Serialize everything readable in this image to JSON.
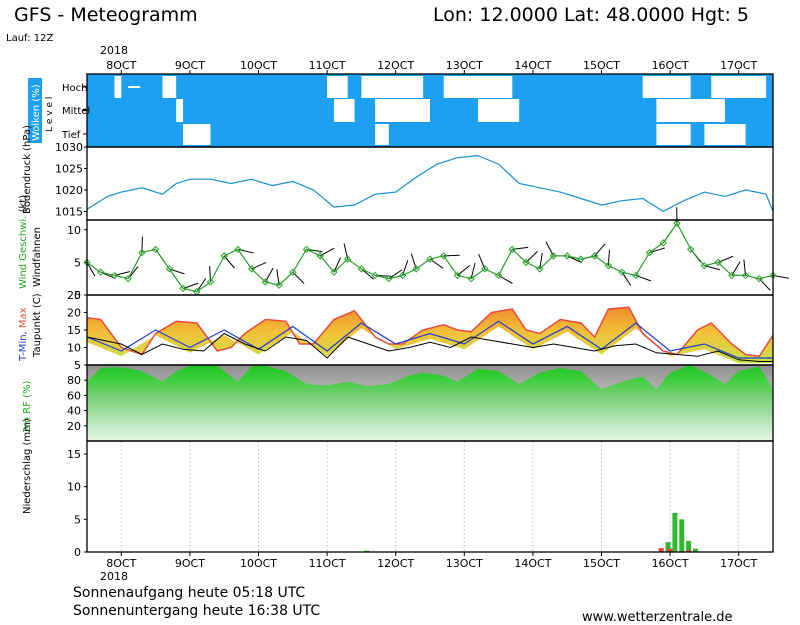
{
  "header": {
    "title": "GFS - Meteogramm",
    "location": "Lon: 12.0000  Lat: 48.0000  Hgt: 5",
    "run": "Lauf: 12Z"
  },
  "footer": {
    "sunrise": "Sonnenaufgang heute 05:18 UTC",
    "sunset": "Sonnenuntergang heute 16:38 UTC",
    "credit": "www.wetterzentrale.de"
  },
  "chart_data": [
    {
      "type": "area",
      "id": "clouds",
      "ylabel": "Wolken (%)",
      "level_axis_label": "L e v e l",
      "levels": [
        "Hoch",
        "Mittel",
        "Tief"
      ],
      "xlabel_top": "2018",
      "x_ticks": [
        "8OCT",
        "9OCT",
        "10OCT",
        "11OCT",
        "12OCT",
        "13OCT",
        "14OCT",
        "15OCT",
        "16OCT",
        "17OCT"
      ],
      "note": "cloud cover; clear gaps per level as [start_day, end_day]",
      "clear_gaps": {
        "Hoch": [
          [
            7.9,
            8.0
          ],
          [
            8.6,
            8.8
          ],
          [
            11.0,
            11.3
          ],
          [
            11.5,
            12.4
          ],
          [
            12.7,
            13.7
          ],
          [
            15.6,
            16.3
          ],
          [
            16.6,
            17.4
          ]
        ],
        "Mittel": [
          [
            8.8,
            8.9
          ],
          [
            11.1,
            11.4
          ],
          [
            11.7,
            12.5
          ],
          [
            13.2,
            13.8
          ],
          [
            15.8,
            16.8
          ]
        ],
        "Tief": [
          [
            8.9,
            9.3
          ],
          [
            11.7,
            11.9
          ],
          [
            15.8,
            16.3
          ],
          [
            16.5,
            17.1
          ]
        ]
      }
    },
    {
      "type": "line",
      "id": "pressure",
      "ylabel": "Bodendruck (hPa)",
      "ylim": [
        1013,
        1030
      ],
      "y_ticks": [
        1015,
        1020,
        1025,
        1030
      ],
      "series": [
        {
          "color": "#1a8fd0",
          "x": [
            7.5,
            7.8,
            8.0,
            8.3,
            8.6,
            8.8,
            9.0,
            9.3,
            9.6,
            9.9,
            10.2,
            10.5,
            10.8,
            11.1,
            11.4,
            11.7,
            12.0,
            12.3,
            12.6,
            12.9,
            13.2,
            13.5,
            13.8,
            14.1,
            14.4,
            14.7,
            15.0,
            15.3,
            15.6,
            15.9,
            16.2,
            16.5,
            16.8,
            17.1,
            17.4,
            17.5
          ],
          "y": [
            1015.5,
            1018.5,
            1019.5,
            1020.5,
            1019,
            1021.5,
            1022.5,
            1022.5,
            1021.5,
            1022.5,
            1021,
            1022,
            1020,
            1016,
            1016.5,
            1019,
            1019.5,
            1023,
            1026,
            1027.5,
            1028,
            1026,
            1021.5,
            1020.5,
            1019.5,
            1018,
            1016.5,
            1017.5,
            1018,
            1015,
            1017.5,
            1019.5,
            1018.5,
            1020,
            1019,
            1015
          ]
        }
      ]
    },
    {
      "type": "line",
      "id": "wind",
      "ylabel": "Wind Geschwi. (kt)",
      "ylabel2": "Windfahnen",
      "ylim": [
        0,
        11.5
      ],
      "y_ticks": [
        0,
        5,
        10
      ],
      "series": [
        {
          "color": "#2ca02c",
          "x": [
            7.5,
            7.7,
            7.9,
            8.1,
            8.3,
            8.5,
            8.7,
            8.9,
            9.1,
            9.3,
            9.5,
            9.7,
            9.9,
            10.1,
            10.3,
            10.5,
            10.7,
            10.9,
            11.1,
            11.3,
            11.5,
            11.7,
            11.9,
            12.1,
            12.3,
            12.5,
            12.7,
            12.9,
            13.1,
            13.3,
            13.5,
            13.7,
            13.9,
            14.1,
            14.3,
            14.5,
            14.7,
            14.9,
            15.1,
            15.3,
            15.5,
            15.7,
            15.9,
            16.1,
            16.3,
            16.5,
            16.7,
            16.9,
            17.1,
            17.3,
            17.5
          ],
          "y": [
            5,
            3.5,
            3,
            2.5,
            6.5,
            7,
            4,
            1,
            0.5,
            2,
            6,
            7,
            4,
            2,
            1.5,
            3.5,
            7,
            6,
            3.5,
            5.5,
            4,
            3,
            2.5,
            3,
            4,
            5.5,
            6,
            3,
            2.5,
            4,
            3,
            7,
            5,
            4,
            6,
            6,
            5.5,
            6,
            4.5,
            3.5,
            3,
            6.5,
            8,
            11,
            7,
            4.5,
            5,
            3,
            3,
            2.5,
            3
          ]
        }
      ]
    },
    {
      "type": "area",
      "id": "temperature",
      "ylabel": "T-Min, Max Taupunkt (C)",
      "ylim": [
        5,
        25
      ],
      "y_ticks": [
        5,
        10,
        15,
        20,
        25
      ],
      "series": [
        {
          "name": "Max",
          "color": "#e74c3c",
          "x": [
            7.5,
            7.7,
            8.0,
            8.3,
            8.5,
            8.8,
            9.1,
            9.4,
            9.6,
            9.8,
            10.1,
            10.4,
            10.6,
            10.8,
            11.1,
            11.4,
            11.7,
            11.9,
            12.1,
            12.4,
            12.7,
            12.9,
            13.1,
            13.4,
            13.7,
            13.9,
            14.1,
            14.4,
            14.7,
            14.9,
            15.1,
            15.4,
            15.6,
            15.9,
            16.1,
            16.4,
            16.6,
            16.9,
            17.1,
            17.3,
            17.5
          ],
          "y": [
            18.5,
            18,
            10,
            8,
            14,
            17.5,
            17,
            9,
            10,
            14,
            18,
            17.5,
            11,
            11,
            18,
            20.5,
            13,
            11,
            11,
            15,
            16.5,
            15,
            14.5,
            20,
            21,
            15,
            14,
            18,
            17,
            13,
            21,
            21.5,
            14,
            9,
            8,
            15,
            17,
            11,
            8,
            7.5,
            13.5
          ]
        },
        {
          "name": "Min",
          "color": "#1f3bd1",
          "x": [
            7.5,
            8.0,
            8.5,
            9.0,
            9.5,
            10.0,
            10.5,
            11.0,
            11.5,
            12.0,
            12.5,
            13.0,
            13.5,
            14.0,
            14.5,
            15.0,
            15.5,
            16.0,
            16.5,
            17.0,
            17.5
          ],
          "y": [
            13,
            9,
            15,
            10,
            15,
            9.5,
            16,
            9,
            17,
            11,
            14,
            11,
            17.5,
            11,
            16,
            9.5,
            17,
            9,
            11,
            7,
            7
          ]
        },
        {
          "name": "Taupunkt",
          "color": "#000000",
          "x": [
            7.5,
            8.0,
            8.3,
            8.6,
            8.9,
            9.2,
            9.5,
            9.8,
            10.1,
            10.4,
            10.7,
            11.0,
            11.3,
            11.6,
            11.9,
            12.2,
            12.5,
            12.8,
            13.1,
            13.4,
            13.7,
            14.0,
            14.3,
            14.6,
            14.9,
            15.2,
            15.5,
            15.8,
            16.1,
            16.4,
            16.7,
            17.0,
            17.3,
            17.5
          ],
          "y": [
            13,
            11,
            8,
            11,
            9.5,
            9,
            14,
            11,
            9,
            13,
            12,
            7,
            13,
            11,
            9,
            10,
            11.5,
            10,
            13,
            12,
            11,
            10,
            11,
            10,
            9,
            10.5,
            11,
            8.5,
            8,
            7.5,
            9,
            6.5,
            6,
            6
          ]
        }
      ]
    },
    {
      "type": "area",
      "id": "humidity",
      "ylabel": "2m RF (%)",
      "ylim": [
        0,
        100
      ],
      "y_ticks": [
        20,
        40,
        60,
        80
      ],
      "series": [
        {
          "color": "#1fbf2a",
          "x": [
            7.5,
            7.7,
            8.0,
            8.3,
            8.6,
            8.8,
            9.0,
            9.4,
            9.7,
            9.9,
            10.1,
            10.4,
            10.7,
            11.0,
            11.3,
            11.6,
            11.9,
            12.2,
            12.4,
            12.7,
            12.9,
            13.2,
            13.5,
            13.8,
            14.1,
            14.4,
            14.7,
            15.0,
            15.3,
            15.6,
            15.8,
            16.0,
            16.3,
            16.6,
            16.8,
            17.0,
            17.3,
            17.5
          ],
          "y": [
            78,
            96,
            97,
            92,
            78,
            92,
            99,
            99,
            78,
            98,
            99,
            92,
            75,
            73,
            78,
            72,
            75,
            86,
            90,
            86,
            78,
            95,
            92,
            75,
            90,
            96,
            92,
            68,
            78,
            85,
            68,
            90,
            100,
            86,
            75,
            92,
            98,
            68
          ]
        }
      ]
    },
    {
      "type": "bar",
      "id": "precipitation",
      "ylabel": "Niederschlag (mm)",
      "ylim": [
        0,
        17
      ],
      "y_ticks": [
        0,
        5,
        10,
        15
      ],
      "xlabel_bottom": "2018",
      "x_ticks": [
        "8OCT",
        "9OCT",
        "10OCT",
        "11OCT",
        "12OCT",
        "13OCT",
        "14OCT",
        "15OCT",
        "16OCT",
        "17OCT"
      ],
      "series": [
        {
          "name": "rain",
          "color": "#2eb82e",
          "x": [
            11.58,
            15.97,
            16.07,
            16.17,
            16.27,
            16.37
          ],
          "values": [
            0.2,
            1.5,
            6,
            5,
            1.7,
            0.5
          ]
        },
        {
          "name": "convective",
          "color": "#e0443a",
          "x": [
            15.87,
            16.0,
            16.27
          ],
          "values": [
            0.6,
            0.5,
            0.3
          ]
        }
      ]
    }
  ]
}
